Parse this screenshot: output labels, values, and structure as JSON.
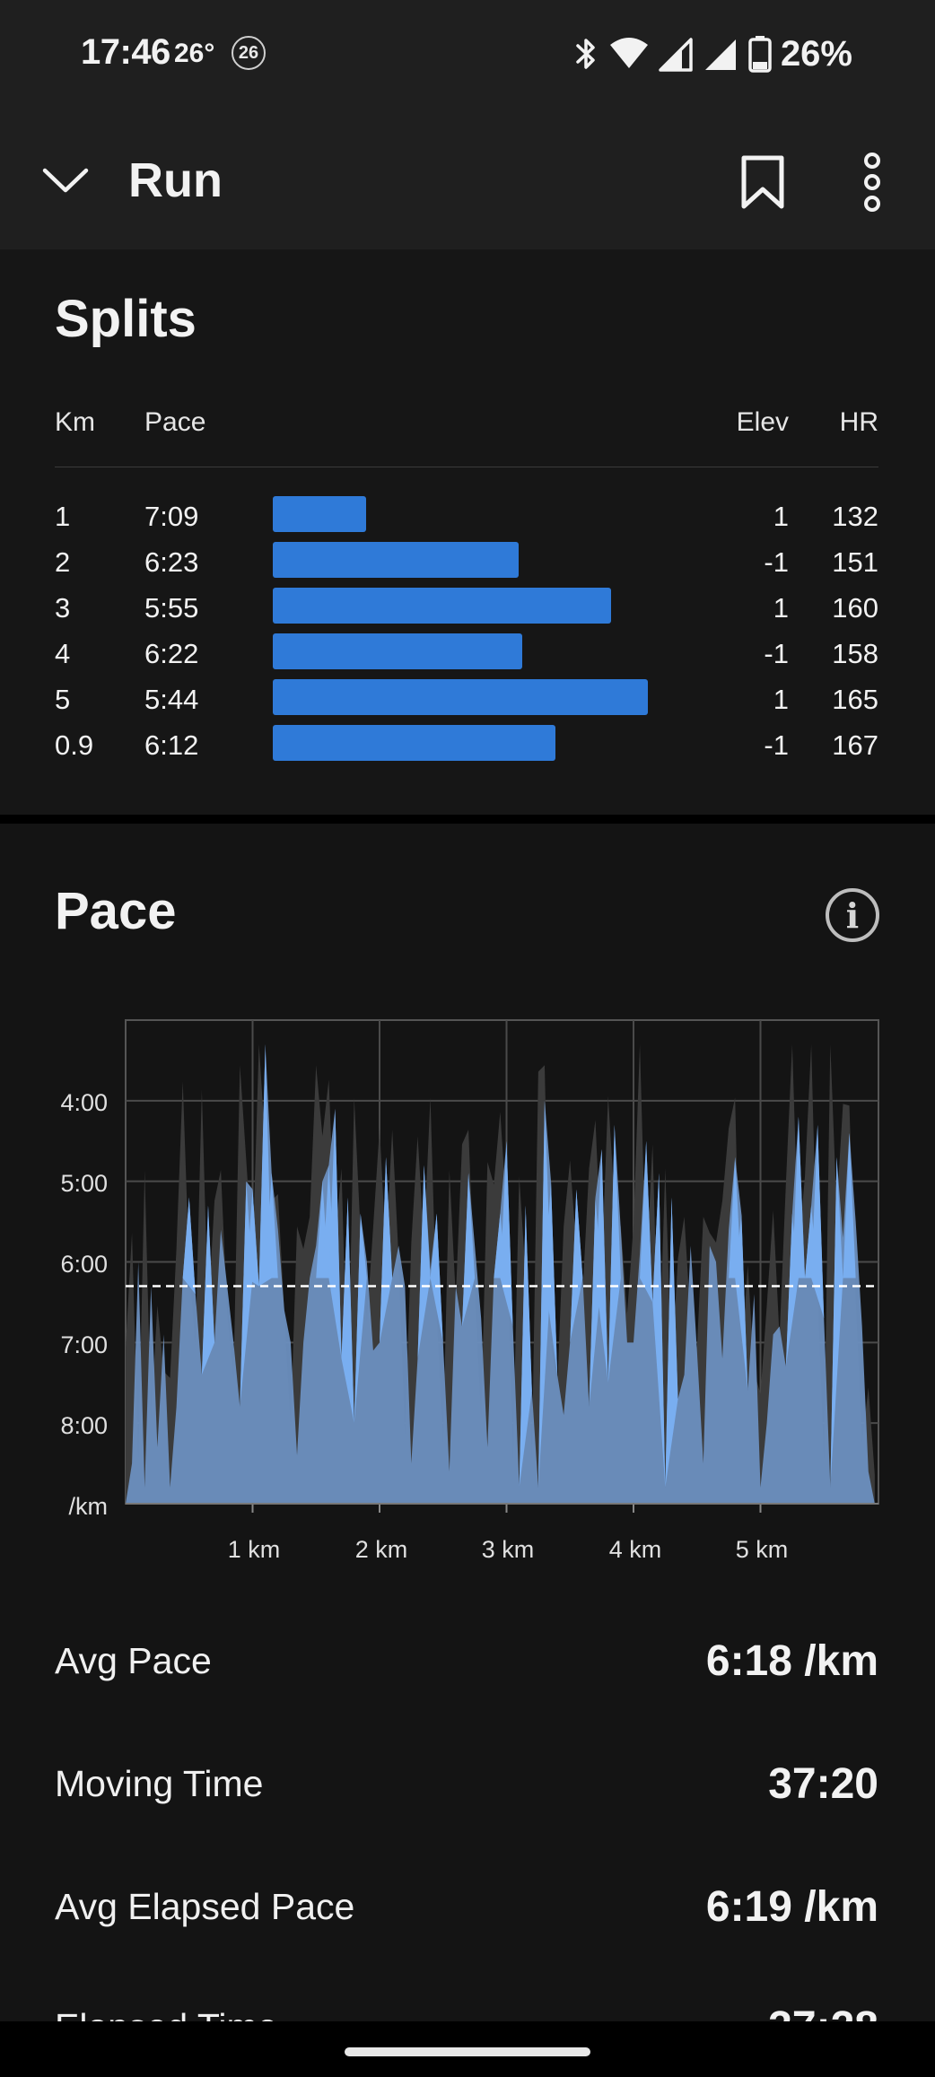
{
  "status_bar": {
    "time": "17:46",
    "temperature": "26°",
    "notification_badge": "26",
    "battery": "26%"
  },
  "app_bar": {
    "title": "Run"
  },
  "splits": {
    "title": "Splits",
    "headers": {
      "km": "Km",
      "pace": "Pace",
      "elev": "Elev",
      "hr": "HR"
    },
    "rows": [
      {
        "km": "1",
        "pace": "7:09",
        "pace_seconds": 429,
        "elev": "1",
        "hr": "132"
      },
      {
        "km": "2",
        "pace": "6:23",
        "pace_seconds": 383,
        "elev": "-1",
        "hr": "151"
      },
      {
        "km": "3",
        "pace": "5:55",
        "pace_seconds": 355,
        "elev": "1",
        "hr": "160"
      },
      {
        "km": "4",
        "pace": "6:22",
        "pace_seconds": 382,
        "elev": "-1",
        "hr": "158"
      },
      {
        "km": "5",
        "pace": "5:44",
        "pace_seconds": 344,
        "elev": "1",
        "hr": "165"
      },
      {
        "km": "0.9",
        "pace": "6:12",
        "pace_seconds": 372,
        "elev": "-1",
        "hr": "167"
      }
    ],
    "bar_color": "#2f7ad8"
  },
  "pace": {
    "title": "Pace",
    "stats": [
      {
        "label": "Avg Pace",
        "value": "6:18 /km"
      },
      {
        "label": "Moving Time",
        "value": "37:20"
      },
      {
        "label": "Avg Elapsed Pace",
        "value": "6:19 /km"
      },
      {
        "label": "Elapsed Time",
        "value": "37:28"
      }
    ]
  },
  "chart_data": {
    "type": "area",
    "title": "",
    "xlabel": "",
    "ylabel": "/km",
    "x_tick_labels": [
      "1 km",
      "2 km",
      "3 km",
      "4 km",
      "5 km"
    ],
    "y_tick_labels": [
      "4:00",
      "5:00",
      "6:00",
      "7:00",
      "8:00",
      "/km"
    ],
    "x_range_km": [
      0,
      5.9
    ],
    "y_range_min_per_km": [
      3,
      9
    ],
    "y_inverted": true,
    "grid": true,
    "average_line_min_per_km": 6.3,
    "series": [
      {
        "color": "#6fa6e8",
        "x": [
          0.0,
          0.05,
          0.1,
          0.15,
          0.2,
          0.25,
          0.3,
          0.35,
          0.4,
          0.45,
          0.5,
          0.55,
          0.6,
          0.65,
          0.7,
          0.75,
          0.8,
          0.85,
          0.9,
          0.95,
          1.0,
          1.05,
          1.1,
          1.15,
          1.2,
          1.25,
          1.3,
          1.35,
          1.4,
          1.45,
          1.5,
          1.55,
          1.6,
          1.65,
          1.7,
          1.75,
          1.8,
          1.85,
          1.9,
          1.95,
          2.0,
          2.05,
          2.1,
          2.15,
          2.2,
          2.25,
          2.3,
          2.35,
          2.4,
          2.45,
          2.5,
          2.55,
          2.6,
          2.65,
          2.7,
          2.75,
          2.8,
          2.85,
          2.9,
          2.95,
          3.0,
          3.05,
          3.1,
          3.15,
          3.2,
          3.25,
          3.3,
          3.35,
          3.4,
          3.45,
          3.5,
          3.55,
          3.6,
          3.65,
          3.7,
          3.75,
          3.8,
          3.85,
          3.9,
          3.95,
          4.0,
          4.05,
          4.1,
          4.15,
          4.2,
          4.25,
          4.3,
          4.35,
          4.4,
          4.45,
          4.5,
          4.55,
          4.6,
          4.65,
          4.7,
          4.75,
          4.8,
          4.85,
          4.9,
          4.95,
          5.0,
          5.05,
          5.1,
          5.15,
          5.2,
          5.25,
          5.3,
          5.35,
          5.4,
          5.45,
          5.5,
          5.55,
          5.6,
          5.65,
          5.7,
          5.75,
          5.8,
          5.85,
          5.9
        ],
        "y": [
          9.0,
          8.5,
          6.0,
          8.8,
          6.3,
          8.3,
          6.9,
          8.8,
          7.8,
          6.2,
          5.2,
          6.4,
          7.4,
          5.3,
          7.0,
          5.6,
          6.3,
          7.0,
          7.8,
          5.0,
          5.1,
          6.3,
          3.3,
          4.9,
          5.6,
          6.6,
          7.0,
          8.4,
          7.0,
          6.2,
          5.8,
          5.0,
          4.8,
          4.1,
          7.2,
          5.2,
          8.0,
          5.4,
          6.0,
          7.1,
          7.0,
          4.7,
          6.2,
          5.8,
          6.3,
          8.5,
          7.2,
          4.8,
          6.1,
          5.4,
          7.0,
          8.6,
          6.3,
          6.8,
          4.9,
          5.8,
          6.7,
          8.3,
          6.2,
          5.4,
          4.5,
          6.8,
          8.8,
          5.3,
          7.6,
          8.8,
          4.0,
          5.0,
          7.4,
          7.9,
          7.0,
          5.1,
          6.2,
          7.8,
          5.2,
          4.6,
          7.5,
          4.3,
          5.6,
          7.0,
          7.0,
          5.9,
          4.5,
          6.5,
          4.9,
          8.8,
          5.2,
          7.7,
          7.4,
          5.8,
          7.1,
          8.5,
          5.8,
          6.0,
          7.2,
          5.6,
          4.7,
          5.4,
          7.6,
          6.4,
          8.8,
          8.0,
          6.9,
          6.8,
          7.3,
          5.4,
          4.2,
          6.2,
          5.3,
          4.3,
          6.7,
          8.8,
          4.7,
          5.7,
          4.4,
          5.5,
          6.8,
          8.6,
          9.0
        ]
      }
    ]
  }
}
